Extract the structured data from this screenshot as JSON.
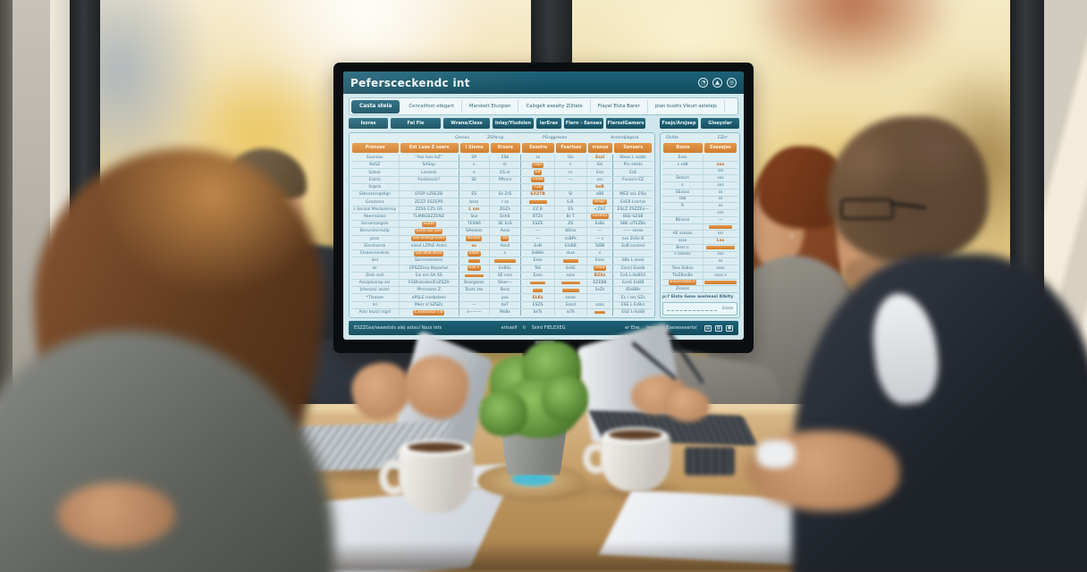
{
  "colors": {
    "screen_teal": "#175364",
    "screen_orange": "#d98a3c",
    "screen_bg": "#cfe7ec",
    "wood": "#c8a26e"
  },
  "screen": {
    "title": "Pefersceckendc int",
    "header_icons": [
      {
        "name": "gauge-icon",
        "glyph": "◔"
      },
      {
        "name": "upload-icon",
        "glyph": "▲"
      },
      {
        "name": "globe-icon",
        "glyph": "◎"
      }
    ],
    "tabs": [
      {
        "label": "Casta stela",
        "active": true
      },
      {
        "label": "Cenralifost efegart",
        "active": false
      },
      {
        "label": "Marskelt Elurgien",
        "active": false
      },
      {
        "label": "Calsgelt exealty Zilltele",
        "active": false
      },
      {
        "label": "Flayel Elsta Barer",
        "active": false
      },
      {
        "label": "plan bustls Vleurl astelejs",
        "active": false
      }
    ],
    "column_buttons": [
      "Iszras",
      "Fel Fle",
      "Wrana/Cless",
      "Inlay/Yludslen",
      "larEras",
      "Flern - Eanses",
      "FlersslGamers",
      "Fsejs/Arsjsep",
      "Glseyslar"
    ],
    "group_labels": [
      "Gzsses",
      "ZSParsp",
      "PGsggresen",
      "Arsendjlapsra"
    ],
    "orange_headers": [
      "Prenses",
      "Est Lase Z ssers",
      "i Slems",
      "Erssre",
      "Easslre",
      "Fearlses",
      "rrenze",
      "Sensars"
    ],
    "rows": [
      [
        "Ssanzas",
        "‴Asz lsss lsZ‴",
        "SP",
        "ESb",
        "ss",
        "ISs",
        "~Eszl",
        "Stess L sszbr"
      ],
      [
        "NzSZ",
        "SASsp",
        "s",
        "sr",
        "@Fsel",
        "✓",
        "Ssl",
        "Prs slssts"
      ],
      [
        "Szlsar",
        "Lssslsls",
        "e",
        "ES sr",
        "@EB",
        "rs",
        "Ess",
        "EsE"
      ],
      [
        "Eszrls",
        "Fsslslssck?",
        "SE",
        "PPssrs",
        "@ESSB",
        "—",
        "ssr",
        "Fssssrs EZ"
      ],
      [
        "Srgsls",
        "",
        "",
        "",
        "@FZB",
        "",
        "~bsB",
        ""
      ],
      [
        "Ssbrszxsrgsllgs",
        "EPZP LZSEZB",
        "ES",
        "Ss ZrS",
        "~EZZTB",
        "SI",
        "sBB",
        "MEZ ssL ElSs"
      ],
      [
        "Gsszsara",
        "ZEZZ SSZEPR",
        "bsss",
        "r ss",
        "#55",
        "S.B.",
        "@ssspjr",
        "EsEB Lssrlss"
      ],
      [
        "s Sanzal Msslazsrnsy",
        "ZZSS EZS GS",
        "~L sm",
        "ZGZs",
        "EZ B",
        "ES",
        "<ZbZ",
        "ESLZ ZSZZEs—"
      ],
      [
        "Aberrszass",
        "TLMBGBZZENZ",
        "Ssz",
        "EshS",
        "BTZs",
        "Br T",
        "@Gsselss",
        "BSE-SZSB"
      ],
      [
        "Ssrserszsgsls",
        "@SsBBl",
        "7ESNS",
        "SE EsS",
        "ESZE",
        "ZS",
        "EsBs",
        "SBE s/TEZBs"
      ],
      [
        "Besvrslsrnszlp",
        "@Esrsl szz ssls",
        "SAssess",
        "Asss",
        "—",
        "bElss",
        "—",
        "—— sssss"
      ],
      [
        "psss",
        "@Sss ElsBrgrssses",
        "@BssBsl",
        "@sS",
        "—",
        "ssBPs",
        "— s",
        "sss ZsSs B"
      ],
      [
        "Elsrslssrsk",
        "elssd LZPsE Aslcs",
        "~ss",
        "Assll",
        "EsB",
        "ElsBB",
        "TsBB",
        "EsB Lsssssl"
      ],
      [
        "Elsassrssnlsss",
        "@Lss elsB slsss",
        "@EsBS",
        "s",
        "SsBBs",
        "sLss",
        "s",
        ""
      ],
      [
        "lssl",
        "Ssrrsrsssssrsr",
        "#40",
        "#70",
        "Esss",
        "#50",
        "Esss",
        "SBs L ssssl"
      ],
      [
        "lsr",
        "EPSZZssa Bsparlas",
        "@esB s",
        "EsBSL",
        "TsE",
        "SsSE",
        "@sASB",
        "Esss] Esssb"
      ],
      [
        "Zlsls zssl",
        "Els ers SA SS",
        "#65",
        "SE ssrs",
        "Esss",
        "ssss",
        "~BZSz",
        "EsS L-SsBS3"
      ],
      [
        "Asszplssrap ssr",
        "FGBlszssles/EsZSZA",
        "Bssrgszss",
        "Slser—",
        "#45",
        "#60",
        "EZEBB",
        "EssG EsBB"
      ],
      [
        "Jslssszsr aszss",
        "lPrsrsszss Z",
        "Tsszs zss",
        "Bsss",
        "#30",
        "#55",
        "SsZs",
        "/ElsBBs"
      ],
      [
        "*Tlsasse",
        "ePSLE lsssbslses",
        "",
        "pss",
        "~ELEs",
        "ssser",
        "",
        "Es / sss SZs"
      ],
      [
        "lsl",
        "Mssr sl SZSZs",
        "—",
        "bsT",
        "ESZS",
        "Esssl",
        "ssss",
        "ESE L EsBs)"
      ],
      [
        "Assr bszz] rsgsl",
        "@L Esssssszl s B",
        "s———",
        "MsBs",
        "bsTs",
        "ssTs",
        "#40",
        "ESZ L-SsSB"
      ]
    ],
    "panel": {
      "group_labels": [
        "ElsXle",
        "EZlrr"
      ],
      "orange_headers": [
        "Bszss",
        "Esasejse"
      ],
      "rows": [
        [
          "Esss",
          ""
        ],
        [
          "s ssB",
          "~sss"
        ],
        [
          "",
          "ssl"
        ],
        [
          "Sslssrl",
          "sss"
        ],
        [
          "s",
          "sss"
        ],
        [
          "SEssss",
          "ss"
        ],
        [
          "ssB",
          "ss"
        ],
        [
          "R",
          "ss"
        ],
        [
          "",
          "sss"
        ],
        [
          "BEssss",
          "—"
        ],
        [
          "",
          "#70"
        ],
        [
          "AE ssssss",
          "ssr"
        ],
        [
          "ssss",
          "~Lss"
        ],
        [
          "Bsss s",
          "#85"
        ],
        [
          "s ssssss",
          "sss"
        ],
        [
          "",
          "ss"
        ],
        [
          "Tsss Ssbss",
          "ssss"
        ],
        [
          "TlsZBssBs",
          "ssss s"
        ],
        [
          "@Esssssssssl s",
          "#95"
        ],
        [
          "Zsssss",
          ""
        ]
      ],
      "note": "p:? Elsta Gese aselmasl Klblty",
      "footer_label": "Essss"
    },
    "status": {
      "left": "ESZZGss/seaestsls alej astsul Nazs lets",
      "center_a": "erlsself",
      "center_icon": {
        "name": "refresh-icon",
        "glyph": "↻"
      },
      "center_b": "Sslrd FIELEXEG",
      "right_a": "er Elre",
      "right_b": "lrser l",
      "right_c": "Eseseseserts(",
      "icons": [
        {
          "name": "printer-icon",
          "glyph": "▤"
        },
        {
          "name": "copy-icon",
          "glyph": "▥"
        },
        {
          "name": "save-icon",
          "glyph": "▣"
        }
      ]
    }
  }
}
